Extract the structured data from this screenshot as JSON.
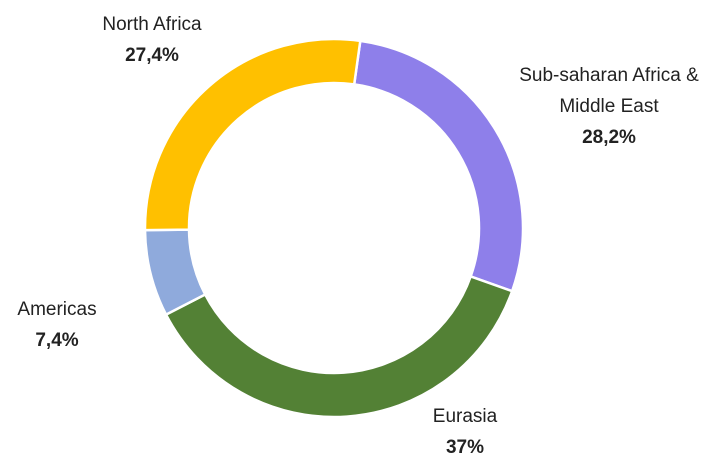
{
  "chart_data": {
    "type": "donut",
    "categories": [
      "Sub-saharan Africa & Middle East",
      "Eurasia",
      "Americas",
      "North Africa"
    ],
    "values": [
      28.2,
      37,
      7.4,
      27.4
    ],
    "value_labels": [
      "28,2%",
      "37%",
      "7,4%",
      "27,4%"
    ],
    "colors": [
      "#8e7fea",
      "#538135",
      "#8faadc",
      "#ffc000"
    ]
  }
}
